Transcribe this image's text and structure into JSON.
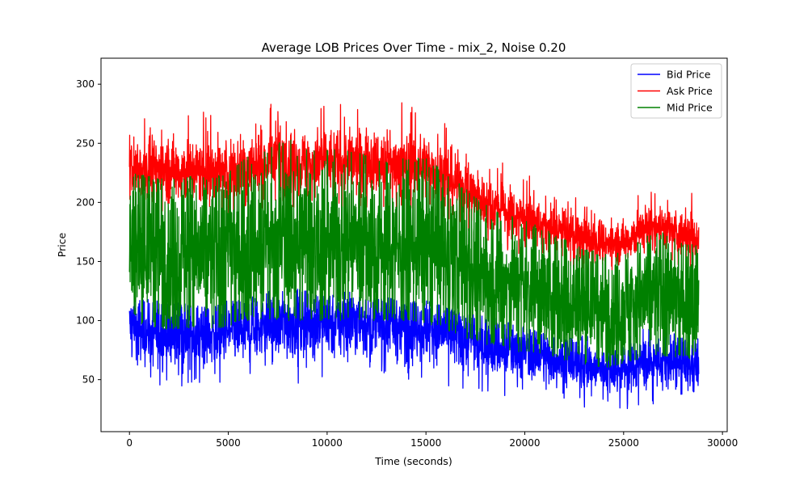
{
  "chart_data": {
    "type": "line",
    "title": "Average LOB Prices Over Time - mix_2, Noise 0.20",
    "xlabel": "Time (seconds)",
    "ylabel": "Price",
    "xlim": [
      -1440,
      30240
    ],
    "ylim": [
      6,
      322
    ],
    "x_ticks": [
      0,
      5000,
      10000,
      15000,
      20000,
      25000,
      30000
    ],
    "y_ticks": [
      50,
      100,
      150,
      200,
      250,
      300
    ],
    "grid": false,
    "legend_position": "top-right",
    "x": [
      0,
      1000,
      2000,
      3000,
      4000,
      5000,
      6000,
      7000,
      8000,
      9000,
      10000,
      11000,
      12000,
      13000,
      14000,
      15000,
      16000,
      17000,
      18000,
      19000,
      20000,
      21000,
      22000,
      23000,
      24000,
      25000,
      26000,
      27000,
      28000,
      28800
    ],
    "series": [
      {
        "name": "Bid Price",
        "color": "#0000ff",
        "mean": [
          96,
          90,
          88,
          88,
          87,
          90,
          94,
          96,
          98,
          99,
          99,
          99,
          98,
          97,
          96,
          95,
          92,
          86,
          80,
          76,
          73,
          70,
          66,
          62,
          59,
          60,
          64,
          66,
          62,
          62
        ],
        "band": [
          16,
          18,
          20,
          20,
          20,
          20,
          20,
          20,
          20,
          20,
          20,
          20,
          20,
          20,
          20,
          20,
          19,
          18,
          17,
          16,
          15,
          15,
          14,
          14,
          13,
          14,
          15,
          14,
          14,
          14
        ],
        "min": [
          70,
          48,
          24,
          46,
          45,
          31,
          47,
          55,
          50,
          40,
          50,
          45,
          50,
          55,
          48,
          52,
          45,
          40,
          40,
          35,
          40,
          33,
          30,
          25,
          20,
          24,
          30,
          25,
          38,
          40
        ],
        "max": [
          120,
          118,
          115,
          115,
          112,
          118,
          120,
          125,
          130,
          125,
          120,
          125,
          118,
          120,
          115,
          118,
          112,
          105,
          105,
          100,
          95,
          90,
          85,
          88,
          82,
          84,
          95,
          95,
          85,
          85
        ]
      },
      {
        "name": "Ask Price",
        "color": "#ff0000",
        "mean": [
          230,
          228,
          228,
          226,
          226,
          226,
          230,
          232,
          235,
          232,
          235,
          234,
          233,
          232,
          231,
          230,
          222,
          210,
          200,
          192,
          186,
          180,
          175,
          168,
          165,
          166,
          178,
          180,
          172,
          172
        ],
        "band": [
          16,
          17,
          18,
          18,
          18,
          18,
          18,
          18,
          19,
          18,
          18,
          18,
          18,
          18,
          18,
          18,
          17,
          16,
          15,
          14,
          13,
          13,
          12,
          12,
          11,
          12,
          13,
          13,
          12,
          12
        ],
        "min": [
          195,
          190,
          190,
          190,
          188,
          190,
          195,
          195,
          195,
          195,
          195,
          195,
          195,
          195,
          195,
          195,
          185,
          175,
          165,
          160,
          155,
          150,
          147,
          140,
          140,
          140,
          150,
          150,
          145,
          145
        ],
        "max": [
          268,
          278,
          308,
          285,
          290,
          285,
          297,
          305,
          308,
          300,
          307,
          305,
          305,
          300,
          300,
          305,
          280,
          270,
          262,
          250,
          265,
          230,
          210,
          200,
          185,
          200,
          210,
          210,
          220,
          220
        ]
      },
      {
        "name": "Mid Price",
        "color": "#008000",
        "mean": [
          162,
          160,
          158,
          157,
          157,
          158,
          162,
          164,
          166,
          166,
          167,
          166,
          166,
          164,
          163,
          162,
          156,
          148,
          140,
          134,
          129,
          125,
          120,
          115,
          112,
          113,
          121,
          123,
          117,
          117
        ],
        "band": [
          44,
          46,
          47,
          47,
          47,
          47,
          48,
          48,
          48,
          48,
          48,
          48,
          48,
          48,
          48,
          48,
          47,
          45,
          43,
          41,
          39,
          38,
          36,
          35,
          34,
          35,
          38,
          38,
          36,
          36
        ],
        "min": [
          100,
          95,
          92,
          92,
          92,
          95,
          100,
          100,
          100,
          100,
          100,
          100,
          100,
          100,
          100,
          98,
          92,
          85,
          80,
          76,
          72,
          70,
          66,
          63,
          60,
          62,
          68,
          70,
          68,
          68
        ],
        "max": [
          225,
          222,
          222,
          222,
          222,
          225,
          240,
          245,
          255,
          245,
          245,
          245,
          240,
          240,
          238,
          238,
          225,
          212,
          198,
          190,
          185,
          178,
          170,
          160,
          158,
          160,
          172,
          175,
          165,
          165
        ]
      }
    ]
  }
}
